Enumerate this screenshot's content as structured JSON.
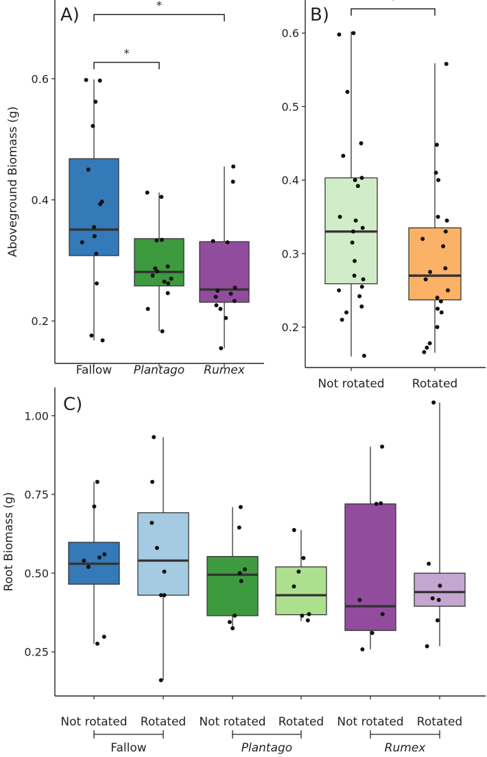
{
  "chart_data": [
    {
      "panel": "A)",
      "type": "boxplot",
      "ylabel": "Aboveground Biomass (g)",
      "ylim": [
        0.13,
        0.73
      ],
      "yticks": [
        0.2,
        0.4,
        0.6
      ],
      "ytick_labels": [
        "0.2",
        "0.4",
        "0.6"
      ],
      "categories": [
        "Fallow",
        "Plantago",
        "Rumex"
      ],
      "italic_categories": [
        false,
        true,
        true
      ],
      "boxes": [
        {
          "q1": 0.308,
          "median": 0.351,
          "q3": 0.468,
          "lower": 0.168,
          "upper": 0.599,
          "color": "#3479b8"
        },
        {
          "q1": 0.258,
          "median": 0.281,
          "q3": 0.336,
          "lower": 0.183,
          "upper": 0.412,
          "color": "#3e9a3e"
        },
        {
          "q1": 0.231,
          "median": 0.252,
          "q3": 0.331,
          "lower": 0.155,
          "upper": 0.455,
          "color": "#924c9d"
        }
      ],
      "points": [
        [
          0.598,
          0.597,
          0.562,
          0.522,
          0.45,
          0.397,
          0.393,
          0.355,
          0.34,
          0.34,
          0.33,
          0.311,
          0.262,
          0.176,
          0.168
        ],
        [
          0.412,
          0.405,
          0.334,
          0.333,
          0.29,
          0.287,
          0.282,
          0.275,
          0.27,
          0.265,
          0.262,
          0.246,
          0.22,
          0.183
        ],
        [
          0.455,
          0.43,
          0.332,
          0.33,
          0.255,
          0.25,
          0.245,
          0.24,
          0.233,
          0.226,
          0.22,
          0.205,
          0.155
        ]
      ],
      "significance": [
        {
          "from": 0,
          "to": 2,
          "label": "*",
          "y": 0.706
        },
        {
          "from": 0,
          "to": 1,
          "label": "*",
          "y": 0.627
        }
      ]
    },
    {
      "panel": "B)",
      "type": "boxplot",
      "ylabel": "",
      "ylim": [
        0.145,
        0.645
      ],
      "yticks": [
        0.2,
        0.3,
        0.4,
        0.5,
        0.6
      ],
      "ytick_labels": [
        "0.2",
        "0.3",
        "0.4",
        "0.5",
        "0.6"
      ],
      "categories": [
        "Not rotated",
        "Rotated"
      ],
      "italic_categories": [
        false,
        false
      ],
      "boxes": [
        {
          "q1": 0.259,
          "median": 0.33,
          "q3": 0.403,
          "lower": 0.16,
          "upper": 0.602,
          "color": "#d1ecc9"
        },
        {
          "q1": 0.237,
          "median": 0.27,
          "q3": 0.335,
          "lower": 0.165,
          "upper": 0.559,
          "color": "#fbb166"
        }
      ],
      "points": [
        [
          0.6,
          0.598,
          0.52,
          0.45,
          0.433,
          0.403,
          0.4,
          0.392,
          0.35,
          0.345,
          0.335,
          0.33,
          0.315,
          0.29,
          0.27,
          0.265,
          0.255,
          0.25,
          0.242,
          0.228,
          0.22,
          0.21,
          0.161
        ],
        [
          0.558,
          0.448,
          0.41,
          0.4,
          0.35,
          0.345,
          0.33,
          0.32,
          0.31,
          0.28,
          0.275,
          0.265,
          0.25,
          0.24,
          0.235,
          0.225,
          0.22,
          0.2,
          0.178,
          0.172,
          0.166
        ]
      ],
      "significance": [
        {
          "from": 0,
          "to": 1,
          "label": "*",
          "y": 0.633
        }
      ]
    },
    {
      "panel": "C)",
      "type": "boxplot",
      "ylabel": "Root Biomass (g)",
      "ylim": [
        0.11,
        1.09
      ],
      "yticks": [
        0.25,
        0.5,
        0.75,
        1.0
      ],
      "ytick_labels": [
        "0.25",
        "0.50",
        "0.75",
        "1.00"
      ],
      "categories": [
        "Not rotated",
        "Rotated",
        "Not rotated",
        "Rotated",
        "Not rotated",
        "Rotated"
      ],
      "italic_categories": [
        false,
        false,
        false,
        false,
        false,
        false
      ],
      "groups": [
        {
          "label": "Fallow",
          "italic": false
        },
        {
          "label": "Plantago",
          "italic": true
        },
        {
          "label": "Rumex",
          "italic": true
        }
      ],
      "boxes": [
        {
          "q1": 0.465,
          "median": 0.53,
          "q3": 0.598,
          "lower": 0.275,
          "upper": 0.79,
          "color": "#3479b8"
        },
        {
          "q1": 0.43,
          "median": 0.54,
          "q3": 0.692,
          "lower": 0.16,
          "upper": 0.932,
          "color": "#a5cbe2"
        },
        {
          "q1": 0.365,
          "median": 0.495,
          "q3": 0.553,
          "lower": 0.325,
          "upper": 0.71,
          "color": "#3e9a3e"
        },
        {
          "q1": 0.368,
          "median": 0.43,
          "q3": 0.52,
          "lower": 0.348,
          "upper": 0.637,
          "color": "#ace08e"
        },
        {
          "q1": 0.318,
          "median": 0.395,
          "q3": 0.72,
          "lower": 0.258,
          "upper": 0.902,
          "color": "#924c9d"
        },
        {
          "q1": 0.395,
          "median": 0.44,
          "q3": 0.5,
          "lower": 0.268,
          "upper": 1.042,
          "color": "#c5a6d0"
        }
      ],
      "points": [
        [
          0.79,
          0.712,
          0.56,
          0.55,
          0.54,
          0.52,
          0.298,
          0.276
        ],
        [
          0.932,
          0.79,
          0.66,
          0.58,
          0.505,
          0.43,
          0.43,
          0.16
        ],
        [
          0.71,
          0.645,
          0.512,
          0.5,
          0.475,
          0.365,
          0.345,
          0.325
        ],
        [
          0.637,
          0.548,
          0.505,
          0.458,
          0.37,
          0.365,
          0.35
        ],
        [
          0.902,
          0.722,
          0.72,
          0.415,
          0.37,
          0.31,
          0.258
        ],
        [
          1.042,
          0.53,
          0.46,
          0.42,
          0.415,
          0.35,
          0.268
        ]
      ],
      "significance": []
    }
  ]
}
